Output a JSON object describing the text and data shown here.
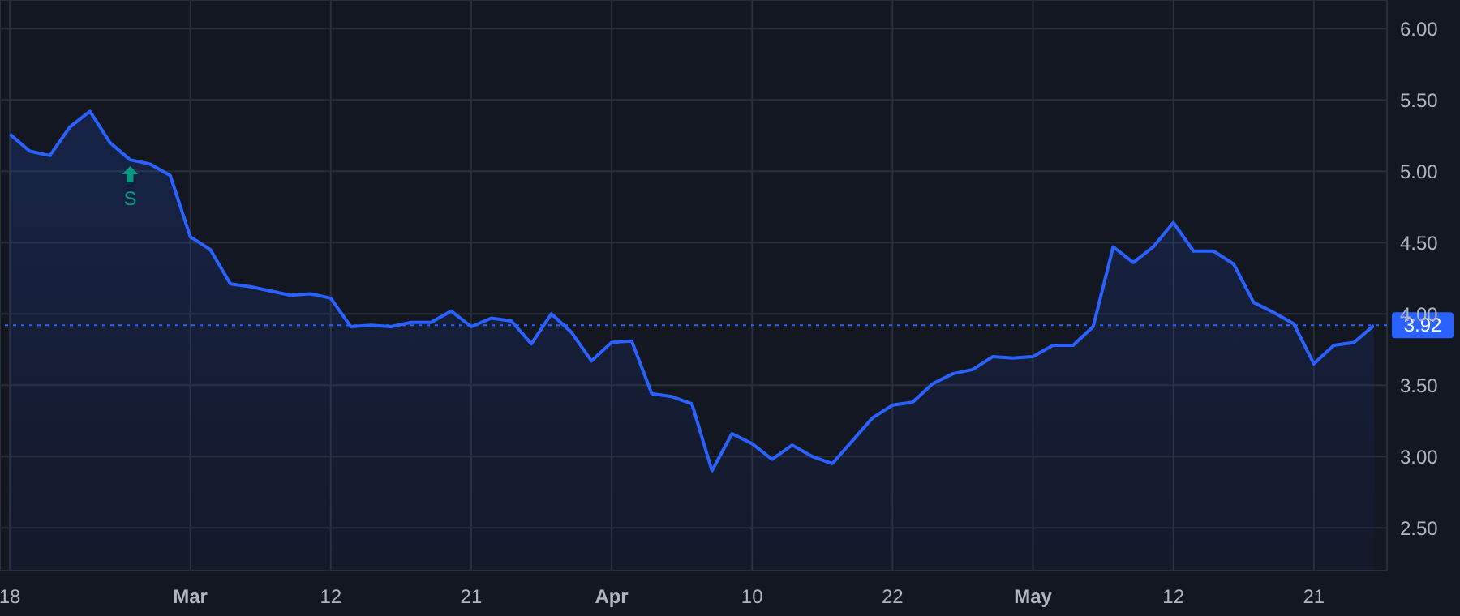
{
  "chart_data": {
    "type": "area",
    "categories": [
      "18",
      null,
      null,
      null,
      null,
      null,
      null,
      null,
      null,
      "Mar",
      null,
      null,
      null,
      null,
      null,
      null,
      "12",
      null,
      null,
      null,
      null,
      null,
      null,
      "21",
      null,
      null,
      null,
      null,
      null,
      null,
      "Apr",
      null,
      null,
      null,
      null,
      null,
      null,
      "10",
      null,
      null,
      null,
      null,
      null,
      null,
      "22",
      null,
      null,
      null,
      null,
      null,
      null,
      "May",
      null,
      null,
      null,
      null,
      null,
      null,
      "12",
      null,
      null,
      null,
      null,
      null,
      null,
      "21",
      null,
      null,
      null
    ],
    "series": [
      {
        "color": "#2962ff",
        "values": [
          5.26,
          5.14,
          5.11,
          5.31,
          5.42,
          5.2,
          5.08,
          5.05,
          4.97,
          4.54,
          4.45,
          4.21,
          4.19,
          4.16,
          4.13,
          4.14,
          4.11,
          3.91,
          3.92,
          3.91,
          3.94,
          3.94,
          4.02,
          3.91,
          3.97,
          3.95,
          3.79,
          4.0,
          3.87,
          3.67,
          3.8,
          3.81,
          3.44,
          3.42,
          3.37,
          2.9,
          3.16,
          3.09,
          2.98,
          3.08,
          3.0,
          2.95,
          3.11,
          3.27,
          3.36,
          3.38,
          3.51,
          3.58,
          3.61,
          3.7,
          3.69,
          3.7,
          3.78,
          3.78,
          3.91,
          4.47,
          4.36,
          4.47,
          4.64,
          4.44,
          4.44,
          4.35,
          4.08,
          4.01,
          3.93,
          3.65,
          3.78,
          3.8,
          3.92
        ]
      }
    ],
    "ylim": [
      2.2,
      6.2
    ],
    "yticks": [
      {
        "value": 2.5,
        "label": "2.50"
      },
      {
        "value": 3,
        "label": "3.00"
      },
      {
        "value": 3.5,
        "label": "3.50"
      },
      {
        "value": 4,
        "label": "4.00"
      },
      {
        "value": 4.5,
        "label": "4.50"
      },
      {
        "value": 5,
        "label": "5.00"
      },
      {
        "value": 5.5,
        "label": "5.50"
      },
      {
        "value": 6,
        "label": "6.00"
      }
    ],
    "grid": true,
    "marker": "none",
    "line_style": "solid",
    "ref_lines": [
      {
        "axis": "y",
        "value": 3.92,
        "label": "3.92",
        "color": "#2962ff",
        "line_style": "dotted"
      }
    ],
    "annotations": [
      {
        "text": "S",
        "y": 5.08
      }
    ]
  }
}
